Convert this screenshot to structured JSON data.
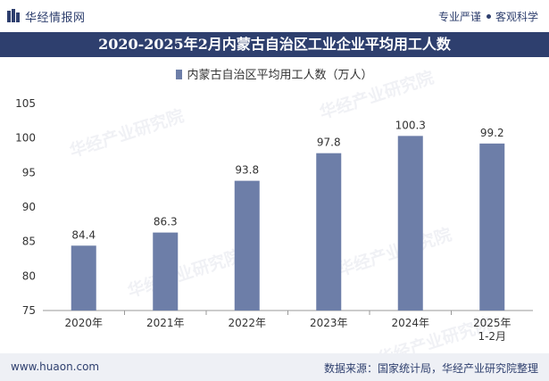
{
  "header": {
    "brand": "华经情报网",
    "slogan_left": "专业严谨",
    "slogan_right": "客观科学"
  },
  "chart_data": {
    "type": "bar",
    "title": "2020-2025年2月内蒙古自治区工业企业平均用工人数",
    "legend": [
      "内蒙古自治区平均用工人数（万人）"
    ],
    "categories": [
      "2020年",
      "2021年",
      "2022年",
      "2023年",
      "2024年",
      "2025年\n1-2月"
    ],
    "values": [
      84.4,
      86.3,
      93.8,
      97.8,
      100.3,
      99.2
    ],
    "ylim": [
      75,
      105
    ],
    "yticks": [
      75,
      80,
      85,
      90,
      95,
      100,
      105
    ],
    "grid": false,
    "bar_color": "#6d7ea8"
  },
  "footer": {
    "url": "www.huaon.com",
    "source": "数据来源：国家统计局，华经产业研究院整理"
  },
  "watermark": "华经产业研究院"
}
